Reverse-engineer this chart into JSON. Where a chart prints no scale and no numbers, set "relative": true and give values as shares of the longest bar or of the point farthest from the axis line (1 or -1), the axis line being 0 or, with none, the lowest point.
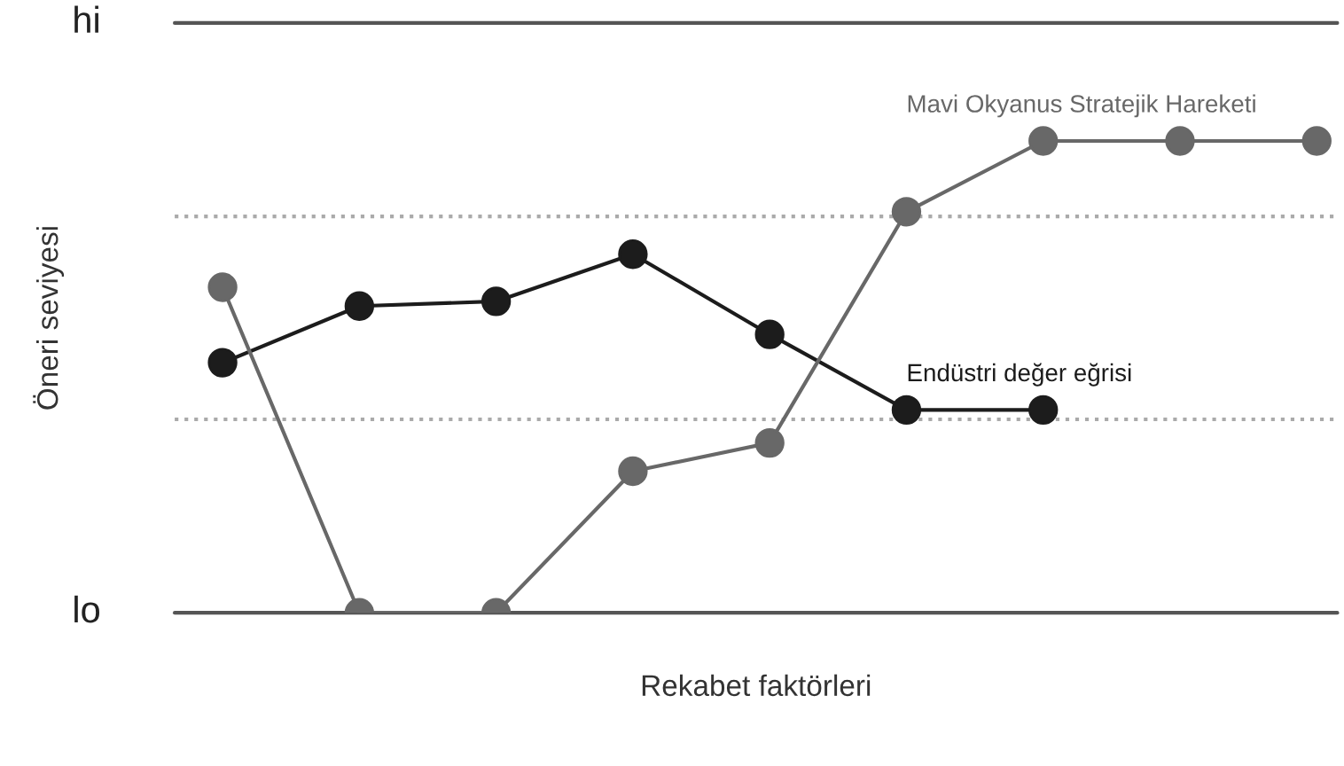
{
  "chart_data": {
    "type": "line",
    "relative": true,
    "xlabel": "Rekabet faktörleri",
    "ylabel": "Öneri seviyesi",
    "categories": [
      null,
      null,
      null,
      null,
      null,
      null,
      null,
      null,
      null
    ],
    "series": [
      {
        "name": "Endüstri değer eğrisi",
        "color": "#1c1c1c",
        "values": [
          0.53,
          0.65,
          0.66,
          0.76,
          0.59,
          0.43,
          0.43,
          null,
          null
        ]
      },
      {
        "name": "Mavi Okyanus Stratejik Hareketi",
        "color": "#686868",
        "values": [
          0.69,
          0,
          0,
          0.3,
          0.36,
          0.85,
          1,
          1,
          1
        ]
      }
    ],
    "ref_lines": [
      {
        "axis": "y",
        "value": 0,
        "label": "lo",
        "line_style": "solid",
        "color": "#555555"
      },
      {
        "axis": "y",
        "value": 0.41,
        "line_style": "dotted",
        "color": "#aaaaaa"
      },
      {
        "axis": "y",
        "value": 0.84,
        "line_style": "dotted",
        "color": "#aaaaaa"
      },
      {
        "axis": "y",
        "value": 1.25,
        "label": "hi",
        "line_style": "solid",
        "color": "#555555"
      }
    ],
    "marker": "circle",
    "line_style": "solid",
    "tick_labels": false
  }
}
